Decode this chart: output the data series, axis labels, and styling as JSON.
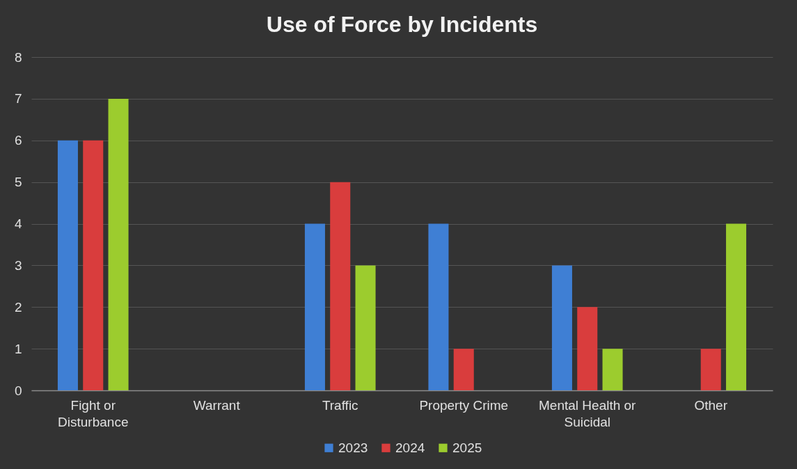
{
  "chart_data": {
    "type": "bar",
    "title": "Use of Force by Incidents",
    "categories": [
      "Fight or Disturbance",
      "Warrant",
      "Traffic",
      "Property Crime",
      "Mental Health or Suicidal",
      "Other"
    ],
    "series": [
      {
        "name": "2023",
        "color": "#3f7fd4",
        "values": [
          6,
          0,
          4,
          4,
          3,
          0
        ]
      },
      {
        "name": "2024",
        "color": "#d93d3d",
        "values": [
          6,
          0,
          5,
          1,
          2,
          1
        ]
      },
      {
        "name": "2025",
        "color": "#9ccc2e",
        "values": [
          7,
          0,
          3,
          0,
          1,
          4
        ]
      }
    ],
    "ylim": [
      0,
      8
    ],
    "yticks": [
      0,
      1,
      2,
      3,
      4,
      5,
      6,
      7,
      8
    ],
    "grid": "y",
    "legend": "bottom"
  }
}
